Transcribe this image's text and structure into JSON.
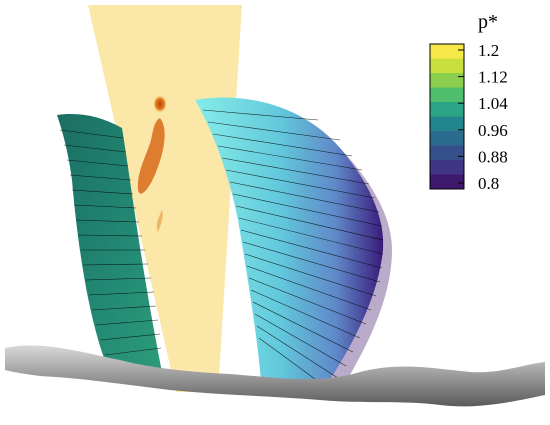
{
  "colorbar": {
    "title": "p*",
    "ticks": [
      "1.2",
      "1.12",
      "1.04",
      "0.96",
      "0.88",
      "0.8"
    ],
    "colors": [
      "#f7e84a",
      "#c9df3d",
      "#8ccf4e",
      "#4fbf6e",
      "#2aa586",
      "#23868f",
      "#2b6c8e",
      "#35508a",
      "#3f3582",
      "#3d186d"
    ]
  },
  "colors": {
    "jet_sheet": "#fbe8a8",
    "jet_hot_core": "#c95a10",
    "left_blade": "#1f7a6a",
    "right_blade_light": "#7de6e4",
    "right_blade_dark": "#3b0f6b",
    "ground": "#b5b5b5",
    "streamline": "#000000"
  }
}
